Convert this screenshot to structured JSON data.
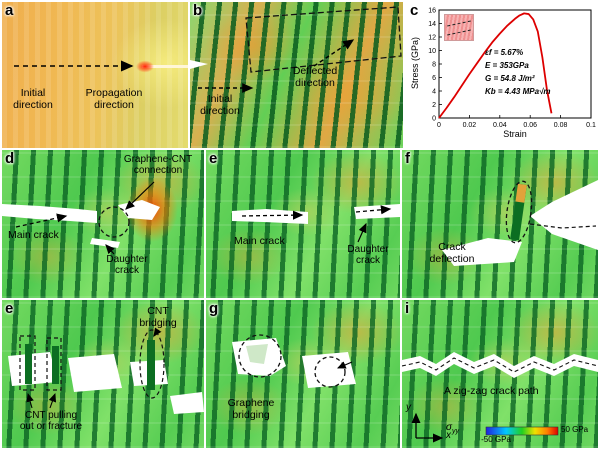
{
  "panels": {
    "a": {
      "letter": "a",
      "initial_direction": "Initial\ndirection",
      "propagation_direction": "Propagation\ndirection"
    },
    "b": {
      "letter": "b",
      "initial_direction": "Initial\ndirection",
      "deflected_direction": "Deflected\ndirection"
    },
    "c": {
      "letter": "c"
    },
    "d": {
      "letter": "d",
      "connection": "Graphene-CNT\nconnection",
      "main_crack": "Main crack",
      "daughter_crack": "Daughter\ncrack"
    },
    "e_mid": {
      "letter": "e",
      "main_crack": "Main crack",
      "daughter_crack": "Daughter\ncrack"
    },
    "f": {
      "letter": "f",
      "crack_deflection": "Crack\ndeflection"
    },
    "e_bot": {
      "letter": "e",
      "cnt_bridging": "CNT\nbridging",
      "cnt_pullout": "CNT pulling\nout or fracture"
    },
    "g": {
      "letter": "g",
      "graphene_bridging": "Graphene\nbridging"
    },
    "i": {
      "letter": "i",
      "zigzag_label": "A zig-zag crack path",
      "sigma_symbol": "σ",
      "sigma_sub": "yy",
      "scale_min": "-50 GPa",
      "scale_max": "50 GPa",
      "axis_x": "x",
      "axis_y": "y"
    }
  },
  "chart_data": {
    "type": "line",
    "title": "",
    "xlabel": "Strain",
    "ylabel": "Stress (GPa)",
    "xlim": [
      0,
      0.1
    ],
    "ylim": [
      0,
      16
    ],
    "grid": false,
    "legend_position": "none",
    "x_ticks": [
      0,
      0.02,
      0.04,
      0.06,
      0.08,
      0.1
    ],
    "x_tick_labels": [
      "0",
      "0.02",
      "0.04",
      "0.06",
      "0.08",
      "0.1"
    ],
    "y_ticks": [
      0,
      2,
      4,
      6,
      8,
      10,
      12,
      14,
      16
    ],
    "y_tick_labels": [
      "0",
      "2",
      "4",
      "6",
      "8",
      "10",
      "12",
      "14",
      "16"
    ],
    "curve_color": "#dd0000",
    "x": [
      0,
      0.005,
      0.01,
      0.015,
      0.02,
      0.025,
      0.03,
      0.035,
      0.04,
      0.045,
      0.05,
      0.053,
      0.056,
      0.059,
      0.062,
      0.065,
      0.068,
      0.071,
      0.074
    ],
    "y": [
      0,
      1.5,
      3.1,
      4.8,
      6.5,
      8.1,
      9.7,
      11.2,
      12.5,
      13.7,
      14.7,
      15.2,
      15.5,
      15.4,
      14.6,
      12.8,
      9.0,
      4.2,
      0.7
    ],
    "annotations": [
      "εf = 5.67%",
      "E = 353GPa",
      "G = 54.8 J/m²",
      "Kb = 4.43 MPa√m"
    ]
  }
}
